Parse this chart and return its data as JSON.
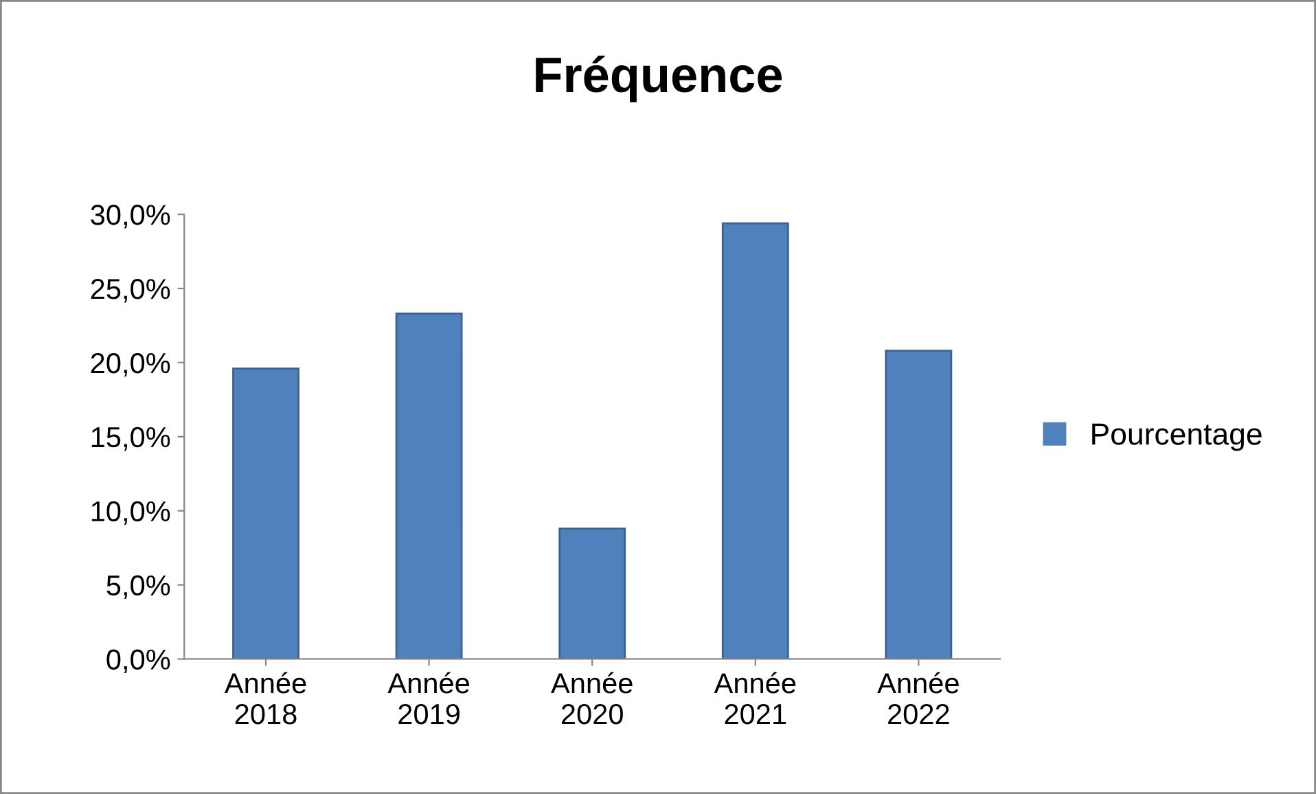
{
  "chart_data": {
    "type": "bar",
    "title": "Fréquence",
    "categories": [
      "Année\n2018",
      "Année\n2019",
      "Année\n2020",
      "Année\n2021",
      "Année\n2022"
    ],
    "series": [
      {
        "name": "Pourcentage",
        "color": "#4f81bd",
        "values": [
          19.6,
          23.3,
          8.8,
          29.4,
          20.8
        ]
      }
    ],
    "ylim": [
      0,
      30
    ],
    "yticks": [
      {
        "value": 0,
        "label": "0,0%"
      },
      {
        "value": 5,
        "label": "5,0%"
      },
      {
        "value": 10,
        "label": "10,0%"
      },
      {
        "value": 15,
        "label": "15,0%"
      },
      {
        "value": 20,
        "label": "20,0%"
      },
      {
        "value": 25,
        "label": "25,0%"
      },
      {
        "value": 30,
        "label": "30,0%"
      }
    ],
    "grid": false,
    "legend": "right"
  }
}
